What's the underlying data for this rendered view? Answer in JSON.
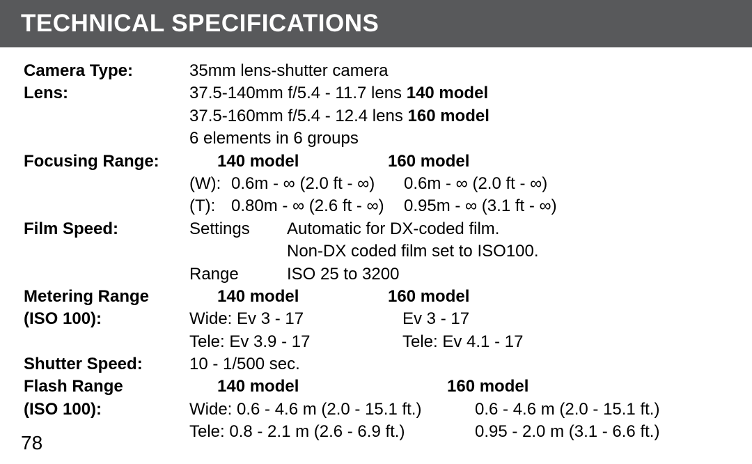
{
  "title": "TECHNICAL SPECIFICATIONS",
  "page_number": "78",
  "camera_type": {
    "label": "Camera Type:",
    "value": "35mm lens-shutter camera"
  },
  "lens": {
    "label": "Lens:",
    "l1a": "37.5-140mm f/5.4 - 11.7 lens ",
    "l1b": "140 model",
    "l2a": "37.5-160mm f/5.4 - 12.4 lens ",
    "l2b": "160 model",
    "l3": "6 elements in 6 groups"
  },
  "focusing": {
    "label": "Focusing Range:",
    "h1": "140 model",
    "h2": "160 model",
    "wpre": "(W):",
    "w1": "0.6m - ∞ (2.0 ft - ∞)",
    "w2": "0.6m - ∞ (2.0 ft - ∞)",
    "tpre": "(T):",
    "t1": "0.80m - ∞ (2.6 ft - ∞)",
    "t2": "0.95m - ∞ (3.1 ft - ∞)"
  },
  "film_speed": {
    "label": "Film Speed:",
    "sub1": "Settings",
    "val1a": "Automatic for DX-coded film.",
    "val1b": "Non-DX coded film set to ISO100.",
    "sub2": "Range",
    "val2": "ISO 25 to 3200"
  },
  "metering": {
    "label1": "Metering Range",
    "label2": "(ISO 100):",
    "h1": "140 model",
    "h2": "160 model",
    "w1": "Wide: Ev 3 - 17",
    "w2": "Ev 3 - 17",
    "t1": "Tele: Ev 3.9 - 17",
    "t2": "Tele: Ev 4.1 - 17"
  },
  "shutter": {
    "label": "Shutter Speed:",
    "value": "10 - 1/500 sec."
  },
  "flash": {
    "label1": "Flash Range",
    "label2": "(ISO 100):",
    "h1": "140 model",
    "h2": "160 model",
    "w1": "Wide: 0.6 - 4.6 m (2.0 - 15.1 ft.)",
    "w2": "0.6 - 4.6 m (2.0 - 15.1 ft.)",
    "t1": "Tele: 0.8 - 2.1 m (2.6 - 6.9 ft.)",
    "t2": "0.95 - 2.0 m (3.1 - 6.6 ft.)"
  }
}
